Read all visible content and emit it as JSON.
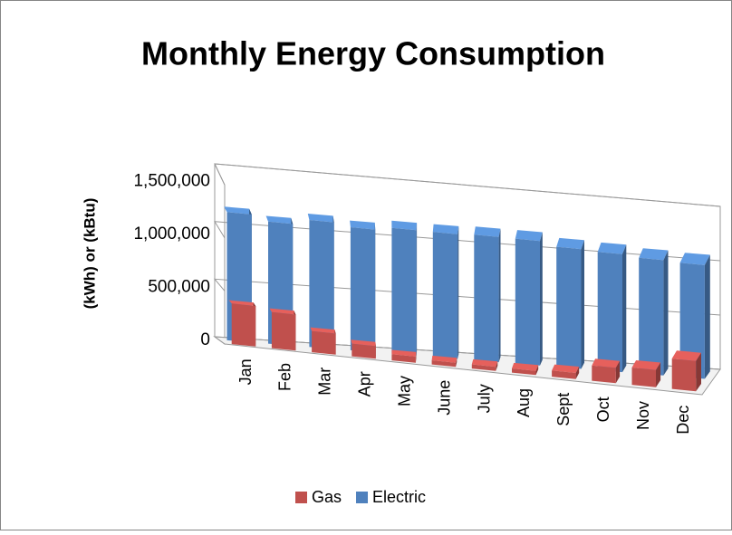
{
  "chart_data": {
    "type": "bar3d",
    "title": "Monthly Energy Consumption",
    "y_label": "(kWh) or (kBtu)",
    "categories": [
      "Jan",
      "Feb",
      "Mar",
      "Apr",
      "May",
      "June",
      "July",
      "Aug",
      "Sept",
      "Oct",
      "Nov",
      "Dec"
    ],
    "series": [
      {
        "name": "Gas",
        "color": "#c0504d",
        "values": [
          380000,
          340000,
          200000,
          120000,
          60000,
          40000,
          40000,
          40000,
          60000,
          150000,
          170000,
          300000
        ]
      },
      {
        "name": "Electric",
        "color": "#4f81bd",
        "values": [
          1150000,
          1100000,
          1150000,
          1120000,
          1150000,
          1150000,
          1160000,
          1160000,
          1120000,
          1110000,
          1090000,
          1080000
        ]
      }
    ],
    "ylim": [
      0,
      1500000
    ],
    "yticks": [
      0,
      {
        "value": 500000,
        "label": "500,000"
      },
      {
        "value": 1000000,
        "label": "1,000,000"
      },
      {
        "value": 1500000,
        "label": "1,500,000"
      }
    ],
    "grid": true,
    "legend": "bottom"
  }
}
